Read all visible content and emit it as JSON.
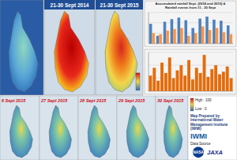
{
  "top_maps": [
    {
      "label": "21-30 Sept 2014"
    },
    {
      "label": "21-30 Sept 2015"
    }
  ],
  "legend": {
    "high": "High : 100",
    "low": "Low : 0"
  },
  "daily_maps": [
    {
      "label": "6 Sept 2015"
    },
    {
      "label": "27 Sept 2015"
    },
    {
      "label": "28 Sept 2015"
    },
    {
      "label": "29 Sept 2015"
    },
    {
      "label": "30 Sept 2015"
    }
  ],
  "credits": {
    "prepared_by": "Map Prepared by International Water Management Institute (IWMI)",
    "logo": "IWMI",
    "data_source": "Data Source",
    "agencies": [
      "NASA",
      "JAXA"
    ]
  },
  "chart_data": [
    {
      "type": "bar",
      "title": "Accumulated rainfall Sept. (2014 and 2015) & Rainfall events from 11 - 30 Sept",
      "categories": [
        null,
        null,
        null,
        null,
        null,
        null,
        null,
        null,
        null,
        null,
        null,
        null
      ],
      "series": [
        {
          "color": "#4f81bd",
          "values": [
            380,
            150,
            420,
            470,
            500,
            450,
            300,
            480,
            520,
            460,
            440,
            350
          ]
        },
        {
          "color": "#f79646",
          "values": [
            200,
            180,
            250,
            280,
            300,
            150,
            200,
            330,
            260,
            300,
            220,
            180
          ]
        }
      ],
      "ylim": [
        0,
        600
      ],
      "yticks": [
        0,
        200,
        400,
        600
      ],
      "grid": true,
      "tick_labels": false
    },
    {
      "type": "bar",
      "categories": [
        null,
        null,
        null,
        null,
        null,
        null,
        null,
        null,
        null,
        null,
        null,
        null,
        null,
        null,
        null,
        null,
        null,
        null,
        null,
        null,
        null,
        null
      ],
      "series": [
        {
          "color": "#e46c0a",
          "values": [
            60,
            90,
            40,
            110,
            70,
            130,
            50,
            80,
            100,
            60,
            120,
            45,
            90,
            70,
            140,
            55,
            85,
            100,
            65,
            75,
            95,
            50
          ]
        }
      ],
      "ylim": [
        0,
        150
      ],
      "yticks": [
        0,
        50,
        100,
        150
      ],
      "grid": true,
      "tick_labels": false
    }
  ]
}
